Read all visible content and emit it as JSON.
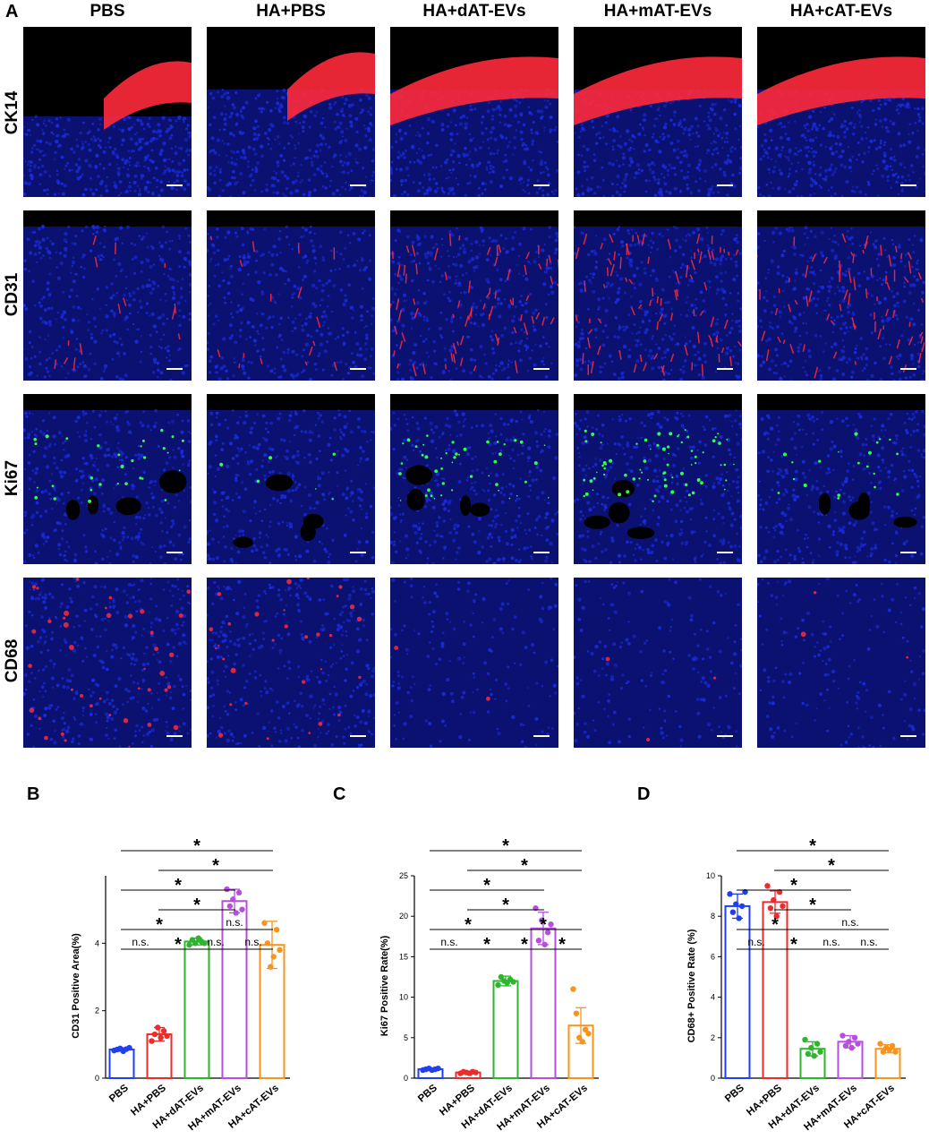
{
  "figure": {
    "panel_labels": [
      "A",
      "B",
      "C",
      "D"
    ],
    "groups": [
      "PBS",
      "HA+PBS",
      "HA+dAT-EVs",
      "HA+mAT-EVs",
      "HA+cAT-EVs"
    ],
    "stains": [
      "CK14",
      "CD31",
      "Ki67",
      "CD68"
    ],
    "colors": {
      "nuclei": "#1a2ad8",
      "red_signal": "#ff2a3a",
      "green_signal": "#2cff4a",
      "group_colors": [
        "#1f3ff0",
        "#ee2b2b",
        "#2db52d",
        "#b64fe0",
        "#f7941d"
      ]
    }
  },
  "chart_data": [
    {
      "panel": "B",
      "type": "bar",
      "categories": [
        "PBS",
        "HA+PBS",
        "HA+dAT-EVs",
        "HA+mAT-EVs",
        "HA+cAT-EVs"
      ],
      "ylabel": "CD31 Positive Area(%)",
      "ylim": [
        0,
        6
      ],
      "yticks": [
        0,
        2,
        4
      ],
      "values": [
        0.85,
        1.3,
        4.05,
        5.25,
        3.95
      ],
      "sd": [
        0.05,
        0.2,
        0.1,
        0.35,
        0.7
      ],
      "points": [
        [
          0.82,
          0.85,
          0.88,
          0.8,
          0.86,
          0.9
        ],
        [
          1.1,
          1.3,
          1.5,
          1.2,
          1.4,
          1.25
        ],
        [
          3.95,
          4.1,
          4.0,
          4.15,
          4.05,
          4.0
        ],
        [
          5.6,
          5.1,
          5.3,
          4.9,
          5.5,
          5.0
        ],
        [
          4.6,
          4.0,
          3.3,
          3.6,
          4.4,
          3.8
        ]
      ],
      "comparisons": [
        {
          "a": 0,
          "b": 4,
          "label": "*"
        },
        {
          "a": 1,
          "b": 4,
          "label": "*"
        },
        {
          "a": 0,
          "b": 3,
          "label": "*"
        },
        {
          "a": 1,
          "b": 3,
          "label": "*"
        },
        {
          "a": 2,
          "b": 4,
          "label": "n.s."
        },
        {
          "a": 0,
          "b": 2,
          "label": "*"
        },
        {
          "a": 2,
          "b": 3,
          "label": "n.s."
        },
        {
          "a": 3,
          "b": 4,
          "label": "n.s."
        },
        {
          "a": 0,
          "b": 1,
          "label": "n.s."
        },
        {
          "a": 1,
          "b": 2,
          "label": "*"
        }
      ]
    },
    {
      "panel": "C",
      "type": "bar",
      "categories": [
        "PBS",
        "HA+PBS",
        "HA+dAT-EVs",
        "HA+mAT-EVs",
        "HA+cAT-EVs"
      ],
      "ylabel": "Ki67 Positive Rate(%)",
      "ylim": [
        0,
        25
      ],
      "yticks": [
        0,
        5,
        10,
        15,
        20,
        25
      ],
      "values": [
        1.1,
        0.7,
        12.0,
        18.5,
        6.5
      ],
      "sd": [
        0.15,
        0.15,
        0.6,
        2.0,
        2.2
      ],
      "points": [
        [
          1.0,
          1.1,
          1.2,
          1.0,
          1.1,
          1.2
        ],
        [
          0.6,
          0.8,
          0.7,
          0.6,
          0.8,
          0.7
        ],
        [
          11.5,
          12.5,
          12.0,
          11.8,
          12.2,
          11.9
        ],
        [
          21.0,
          17.0,
          19.5,
          16.5,
          18.0,
          19.0
        ],
        [
          11.0,
          8.0,
          5.0,
          4.5,
          6.0,
          5.5
        ]
      ],
      "comparisons": [
        {
          "a": 0,
          "b": 4,
          "label": "*"
        },
        {
          "a": 1,
          "b": 4,
          "label": "*"
        },
        {
          "a": 0,
          "b": 3,
          "label": "*"
        },
        {
          "a": 1,
          "b": 3,
          "label": "*"
        },
        {
          "a": 0,
          "b": 2,
          "label": "*"
        },
        {
          "a": 2,
          "b": 4,
          "label": "*"
        },
        {
          "a": 0,
          "b": 1,
          "label": "n.s."
        },
        {
          "a": 1,
          "b": 2,
          "label": "*"
        },
        {
          "a": 2,
          "b": 3,
          "label": "*"
        },
        {
          "a": 3,
          "b": 4,
          "label": "*"
        }
      ]
    },
    {
      "panel": "D",
      "type": "bar",
      "categories": [
        "PBS",
        "HA+PBS",
        "HA+dAT-EVs",
        "HA+mAT-EVs",
        "HA+cAT-EVs"
      ],
      "ylabel": "CD68+ Positive Rate (%)",
      "ylim": [
        0,
        10
      ],
      "yticks": [
        0,
        2,
        4,
        6,
        8,
        10
      ],
      "values": [
        8.5,
        8.7,
        1.45,
        1.8,
        1.45
      ],
      "sd": [
        0.6,
        0.55,
        0.35,
        0.3,
        0.2
      ],
      "points": [
        [
          9.1,
          8.2,
          8.6,
          7.9,
          8.5,
          9.2
        ],
        [
          9.5,
          8.4,
          8.8,
          8.0,
          9.2,
          8.5
        ],
        [
          1.9,
          1.2,
          1.5,
          1.1,
          1.7,
          1.3
        ],
        [
          2.1,
          1.6,
          1.8,
          1.5,
          2.0,
          1.7
        ],
        [
          1.7,
          1.3,
          1.5,
          1.4,
          1.6,
          1.3
        ]
      ],
      "comparisons": [
        {
          "a": 0,
          "b": 4,
          "label": "*"
        },
        {
          "a": 1,
          "b": 4,
          "label": "*"
        },
        {
          "a": 0,
          "b": 3,
          "label": "*"
        },
        {
          "a": 1,
          "b": 3,
          "label": "*"
        },
        {
          "a": 0,
          "b": 2,
          "label": "*"
        },
        {
          "a": 2,
          "b": 4,
          "label": "n.s."
        },
        {
          "a": 0,
          "b": 1,
          "label": "n.s."
        },
        {
          "a": 1,
          "b": 2,
          "label": "*"
        },
        {
          "a": 2,
          "b": 3,
          "label": "n.s."
        },
        {
          "a": 3,
          "b": 4,
          "label": "n.s."
        }
      ]
    }
  ]
}
